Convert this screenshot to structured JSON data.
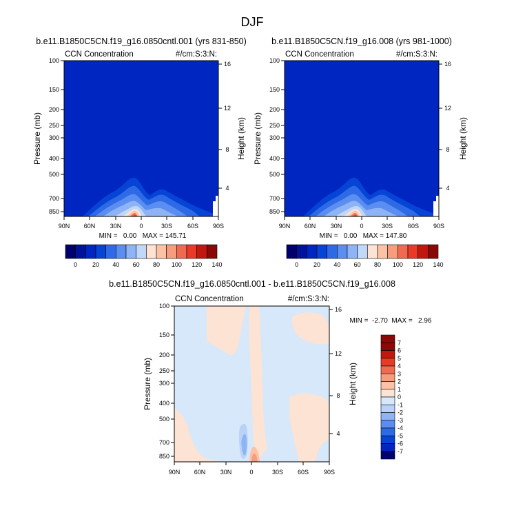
{
  "figure_title": "DJF",
  "chart_data": [
    {
      "type": "heatmap",
      "title": "b.e11.B1850C5CN.f19_g16.0850cntl.001 (yrs 831-850)",
      "left_label": "CCN Concentration",
      "right_label": "#/cm:S:3:N:",
      "ylabel": "Pressure (mb)",
      "y2label": "Height (km)",
      "x_ticks": [
        "90N",
        "60N",
        "30N",
        "0",
        "30S",
        "60S",
        "90S"
      ],
      "y_ticks": [
        "100",
        "150",
        "200",
        "250",
        "300",
        "400",
        "500",
        "700",
        "850"
      ],
      "y2_ticks": [
        "16",
        "12",
        "8",
        "4"
      ],
      "stats": "MIN =   0.00   MAX = 145.71",
      "colorbar_labels": [
        "0",
        "20",
        "40",
        "60",
        "80",
        "100",
        "120",
        "140"
      ],
      "levels": [
        0,
        10,
        20,
        30,
        40,
        50,
        60,
        70,
        80,
        90,
        100,
        110,
        120,
        130,
        140
      ],
      "features": [
        {
          "lat": -10,
          "p_top": 480,
          "peak": 145.71
        },
        {
          "lat": 30,
          "p_top": 650,
          "peak": 40
        }
      ]
    },
    {
      "type": "heatmap",
      "title": "b.e11.B1850C5CN.f19_g16.008 (yrs 981-1000)",
      "left_label": "CCN Concentration",
      "right_label": "#/cm:S:3:N:",
      "ylabel": "Pressure (mb)",
      "y2label": "Height (km)",
      "x_ticks": [
        "90N",
        "60N",
        "30N",
        "0",
        "30S",
        "60S",
        "90S"
      ],
      "y_ticks": [
        "100",
        "150",
        "200",
        "250",
        "300",
        "400",
        "500",
        "700",
        "850"
      ],
      "y2_ticks": [
        "16",
        "12",
        "8",
        "4"
      ],
      "stats": "MIN =   0.00   MAX = 147.80",
      "colorbar_labels": [
        "0",
        "20",
        "40",
        "60",
        "80",
        "100",
        "120",
        "140"
      ],
      "levels": [
        0,
        10,
        20,
        30,
        40,
        50,
        60,
        70,
        80,
        90,
        100,
        110,
        120,
        130,
        140
      ],
      "features": [
        {
          "lat": -10,
          "p_top": 480,
          "peak": 147.8
        },
        {
          "lat": 30,
          "p_top": 650,
          "peak": 40
        }
      ]
    },
    {
      "type": "heatmap",
      "title": "b.e11.B1850C5CN.f19_g16.0850cntl.001 - b.e11.B1850C5CN.f19_g16.008",
      "left_label": "CCN Concentration",
      "right_label": "#/cm:S:3:N:",
      "ylabel": "Pressure (mb)",
      "y2label": "Height (km)",
      "x_ticks": [
        "90N",
        "60N",
        "30N",
        "0",
        "30S",
        "60S",
        "90S"
      ],
      "y_ticks": [
        "100",
        "150",
        "200",
        "250",
        "300",
        "400",
        "500",
        "700",
        "850"
      ],
      "y2_ticks": [
        "16",
        "12",
        "8",
        "4"
      ],
      "stats": "MIN =  -2.70  MAX =   2.96",
      "colorbar_labels": [
        "7",
        "6",
        "5",
        "4",
        "3",
        "2",
        "1",
        "0",
        "-1",
        "-2",
        "-3",
        "-4",
        "-5",
        "-6",
        "-7"
      ],
      "levels": [
        -7,
        -6,
        -5,
        -4,
        -3,
        -2,
        -1,
        0,
        1,
        2,
        3,
        4,
        5,
        6,
        7
      ],
      "min": -2.7,
      "max": 2.96
    }
  ],
  "colors": {
    "abs_palette": [
      "#00006e",
      "#001299",
      "#0026c2",
      "#0644d6",
      "#2e6ae6",
      "#5a8ef0",
      "#8eb4f5",
      "#c2d8fa",
      "#fde3d3",
      "#fcc2a6",
      "#f89c7e",
      "#f06a4f",
      "#e83a26",
      "#c0180e",
      "#8a0808"
    ],
    "diff_palette": [
      "#8a0808",
      "#c0180e",
      "#e83a26",
      "#f06a4f",
      "#f89c7e",
      "#fcc2a6",
      "#fde3d3",
      "#d6e8fa",
      "#b8d2f8",
      "#8eb4f5",
      "#5a8ef0",
      "#2e6ae6",
      "#0644d6",
      "#0026c2",
      "#00006e"
    ]
  }
}
